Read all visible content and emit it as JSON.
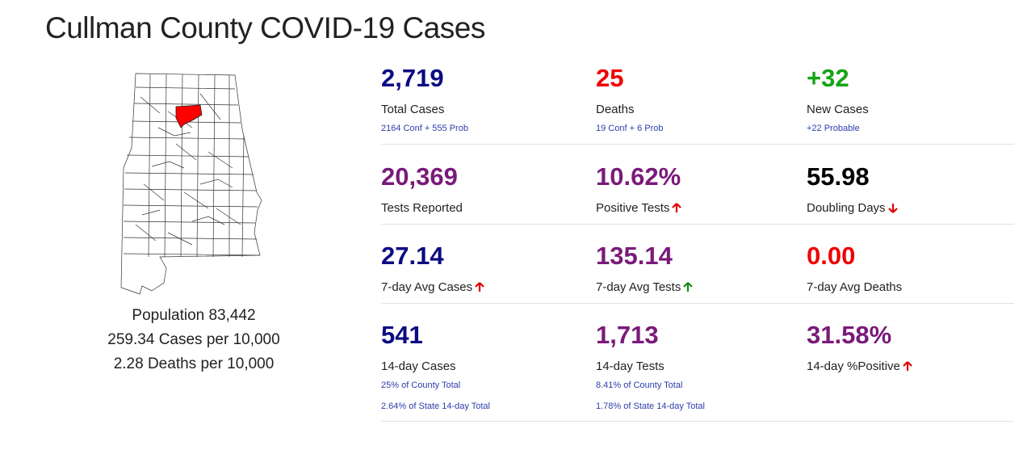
{
  "page": {
    "title": "Cullman County COVID-19 Cases"
  },
  "population": {
    "line1": "Population 83,442",
    "line2": "259.34 Cases per 10,000",
    "line3": "2.28 Deaths per 10,000"
  },
  "colors": {
    "navy": "#0b0b82",
    "red": "#ee0000",
    "green": "#16a316",
    "purple": "#7a1a7a",
    "black": "#000000",
    "arrow_red": "#e00000",
    "arrow_green": "#178a17"
  },
  "map": {
    "highlight_color": "#ff0000",
    "icon": "alabama-county-map"
  },
  "stats": {
    "total_cases": {
      "value": "2,719",
      "label": "Total Cases",
      "sub": "2164 Conf + 555 Prob"
    },
    "deaths": {
      "value": "25",
      "label": "Deaths",
      "sub": "19 Conf + 6 Prob"
    },
    "new_cases": {
      "value": "+32",
      "label": "New Cases",
      "sub": "+22 Probable"
    },
    "tests_reported": {
      "value": "20,369",
      "label": "Tests Reported"
    },
    "positive_tests": {
      "value": "10.62%",
      "label": "Positive Tests",
      "trend": "up-red-arrow-icon"
    },
    "doubling_days": {
      "value": "55.98",
      "label": "Doubling Days",
      "trend": "down-red-arrow-icon"
    },
    "avg_cases_7d": {
      "value": "27.14",
      "label": "7-day Avg Cases",
      "trend": "up-red-arrow-icon"
    },
    "avg_tests_7d": {
      "value": "135.14",
      "label": "7-day Avg Tests",
      "trend": "up-green-arrow-icon"
    },
    "avg_deaths_7d": {
      "value": "0.00",
      "label": "7-day Avg Deaths"
    },
    "cases_14d": {
      "value": "541",
      "label": "14-day Cases",
      "sub1": "25% of County Total",
      "sub2": "2.64% of State 14-day Total"
    },
    "tests_14d": {
      "value": "1,713",
      "label": "14-day Tests",
      "sub1": "8.41% of County Total",
      "sub2": "1.78% of State 14-day Total"
    },
    "positive_14d": {
      "value": "31.58%",
      "label": "14-day %Positive",
      "trend": "up-red-arrow-icon"
    }
  }
}
